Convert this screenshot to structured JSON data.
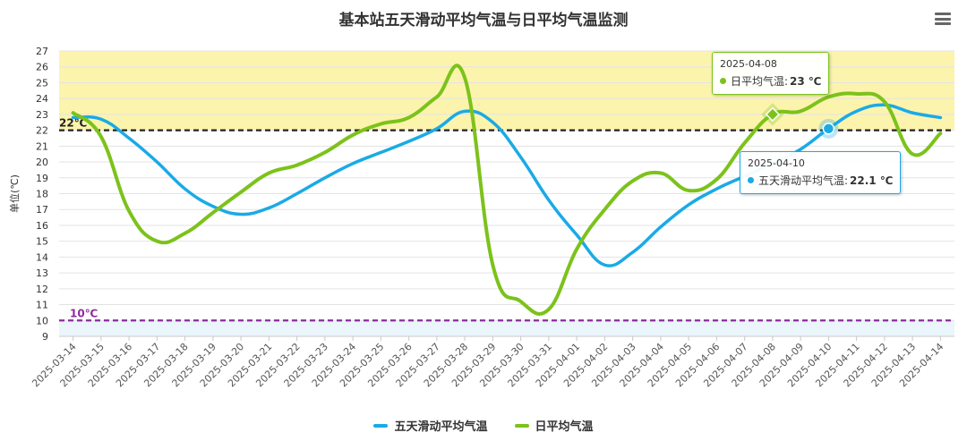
{
  "chart_data": {
    "type": "line",
    "title": "基本站五天滑动平均气温与日平均气温监测",
    "ylabel": "单位(℃)",
    "ylim": [
      9,
      27
    ],
    "yticks": [
      9,
      10,
      11,
      12,
      13,
      14,
      15,
      16,
      17,
      18,
      19,
      20,
      21,
      22,
      23,
      24,
      25,
      26,
      27
    ],
    "categories": [
      "2025-03-14",
      "2025-03-15",
      "2025-03-16",
      "2025-03-17",
      "2025-03-18",
      "2025-03-19",
      "2025-03-20",
      "2025-03-21",
      "2025-03-22",
      "2025-03-23",
      "2025-03-24",
      "2025-03-25",
      "2025-03-26",
      "2025-03-27",
      "2025-03-28",
      "2025-03-29",
      "2025-03-30",
      "2025-03-31",
      "2025-04-01",
      "2025-04-02",
      "2025-04-03",
      "2025-04-04",
      "2025-04-05",
      "2025-04-06",
      "2025-04-07",
      "2025-04-08",
      "2025-04-09",
      "2025-04-10",
      "2025-04-11",
      "2025-04-12",
      "2025-04-13",
      "2025-04-14"
    ],
    "series": [
      {
        "name": "五天滑动平均气温",
        "color": "#1aaae6",
        "values": [
          22.8,
          22.7,
          21.5,
          20.0,
          18.3,
          17.2,
          16.7,
          17.1,
          18.0,
          19.0,
          19.9,
          20.6,
          21.3,
          22.1,
          23.2,
          22.5,
          20.3,
          17.6,
          15.4,
          13.5,
          14.3,
          15.9,
          17.3,
          18.3,
          19.1,
          19.9,
          20.8,
          22.1,
          23.2,
          23.6,
          23.1,
          22.8
        ]
      },
      {
        "name": "日平均气温",
        "color": "#7cc21b",
        "values": [
          23.1,
          21.6,
          16.9,
          15.0,
          15.5,
          16.8,
          18.1,
          19.3,
          19.8,
          20.6,
          21.7,
          22.4,
          22.8,
          24.1,
          25.3,
          13.5,
          11.2,
          10.7,
          14.5,
          17.0,
          18.8,
          19.3,
          18.2,
          18.9,
          21.2,
          23.0,
          23.2,
          24.1,
          24.3,
          23.8,
          20.5,
          21.8
        ]
      }
    ],
    "bands": [
      {
        "from": 22,
        "to": 27,
        "color": "#fcf4ad"
      },
      {
        "from": 9,
        "to": 10,
        "color": "#eaf6fb"
      }
    ],
    "plotlines": [
      {
        "value": 22,
        "label": "22℃",
        "color": "#222222"
      },
      {
        "value": 10,
        "label": "10℃",
        "color": "#8b2c9c"
      }
    ],
    "legend_position": "bottom-center",
    "tooltips": [
      {
        "date": "2025-04-08",
        "series": "日平均气温",
        "label": "日平均气温:",
        "value": "23 ℃",
        "color": "#7cc21b",
        "index": 25,
        "y": 23.0
      },
      {
        "date": "2025-04-10",
        "series": "五天滑动平均气温",
        "label": "五天滑动平均气温:",
        "value": "22.1 ℃",
        "color": "#1aaae6",
        "index": 27,
        "y": 22.1
      }
    ]
  }
}
